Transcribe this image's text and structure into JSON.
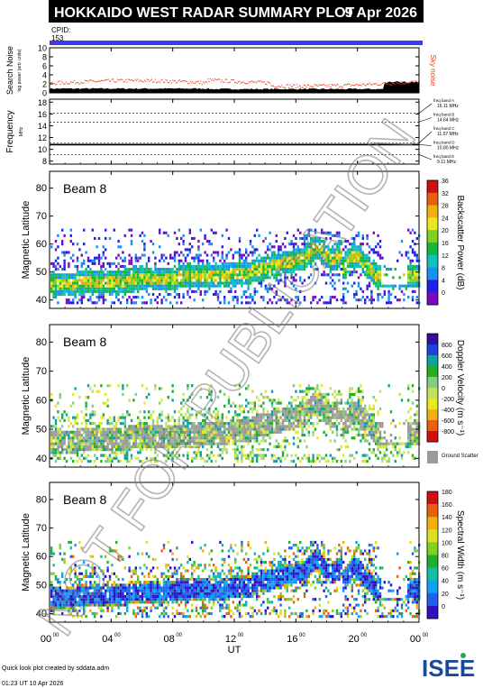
{
  "header": {
    "title": "HOKKAIDO WEST RADAR SUMMARY PLOT",
    "date": "9 Apr 2026",
    "cpid_label": "CPID:",
    "cpid_value": "153"
  },
  "watermark": "NOT FOR PUBLICATION",
  "colors": {
    "title_bar": "#000000",
    "cpid_bar": "#3a3af0",
    "sky_noise": "#e0401a",
    "ground_scatter": "#9a9a9a"
  },
  "chart_data": [
    {
      "type": "line",
      "name": "search-noise-panel",
      "ylabel": "Search Noise",
      "ylabel_sub": "log power (arb. units)",
      "right_label": "Sky noise",
      "yticks": [
        "0",
        "2",
        "4",
        "6",
        "8",
        "10"
      ],
      "ylim": [
        0,
        10
      ]
    },
    {
      "type": "line",
      "name": "frequency-panel",
      "ylabel": "Frequency",
      "ylabel_sub": "MHz",
      "yticks": [
        "8",
        "10",
        "12",
        "14",
        "16",
        "18"
      ],
      "ylim": [
        7.5,
        18.5
      ],
      "bands": [
        {
          "name": "freq band A",
          "value": 16.11,
          "text": "16.11 MHz"
        },
        {
          "name": "freq band B",
          "value": 14.64,
          "text": "14.64 MHz"
        },
        {
          "name": "freq band C",
          "value": 11.07,
          "text": "11.07 MHz"
        },
        {
          "name": "freq band D",
          "value": 10.8,
          "text": "10.80 MHz"
        },
        {
          "name": "freq band E",
          "value": 9.11,
          "text": "9.11 MHz"
        }
      ],
      "operating_frequency": 10.8
    },
    {
      "type": "heatmap",
      "name": "backscatter-power-panel",
      "beam": "Beam 8",
      "ylabel": "Magnetic Latitude",
      "yticks": [
        "40",
        "50",
        "60",
        "70",
        "80"
      ],
      "ylim": [
        37,
        86
      ],
      "colorbar_title": "Backscatter Power (dB)",
      "colorbar_ticks": [
        "0",
        "4",
        "8",
        "12",
        "16",
        "20",
        "24",
        "28",
        "32",
        "36"
      ],
      "colorbar_range": [
        0,
        40
      ]
    },
    {
      "type": "heatmap",
      "name": "doppler-velocity-panel",
      "beam": "Beam 8",
      "ylabel": "Magnetic Latitude",
      "yticks": [
        "40",
        "50",
        "60",
        "70",
        "80"
      ],
      "ylim": [
        37,
        86
      ],
      "colorbar_title": "Doppler Velocity (m s⁻¹)",
      "colorbar_ticks": [
        "-800",
        "-600",
        "-400",
        "-200",
        "0",
        "200",
        "400",
        "600",
        "800"
      ],
      "colorbar_range": [
        -1000,
        1000
      ],
      "ground_scatter_label": "Ground Scatter"
    },
    {
      "type": "heatmap",
      "name": "spectral-width-panel",
      "beam": "Beam 8",
      "ylabel": "Magnetic Latitude",
      "yticks": [
        "40",
        "50",
        "60",
        "70",
        "80"
      ],
      "ylim": [
        37,
        86
      ],
      "colorbar_title": "Spectral Width (m s⁻¹)",
      "colorbar_ticks": [
        "0",
        "20",
        "40",
        "60",
        "80",
        "100",
        "120",
        "140",
        "160",
        "180"
      ],
      "colorbar_range": [
        0,
        200
      ]
    }
  ],
  "x_axis": {
    "xlabel": "UT",
    "ticks": [
      {
        "h": "00",
        "m": "00"
      },
      {
        "h": "04",
        "m": "00"
      },
      {
        "h": "08",
        "m": "00"
      },
      {
        "h": "12",
        "m": "00"
      },
      {
        "h": "16",
        "m": "00"
      },
      {
        "h": "20",
        "m": "00"
      },
      {
        "h": "00",
        "m": "00"
      }
    ],
    "range_hours": [
      0,
      24
    ]
  },
  "footer": {
    "credit": "Quick look plot created by sddata.adm",
    "timestamp": "01:23 UT 10 Apr 2026",
    "logo": "ISEE"
  }
}
